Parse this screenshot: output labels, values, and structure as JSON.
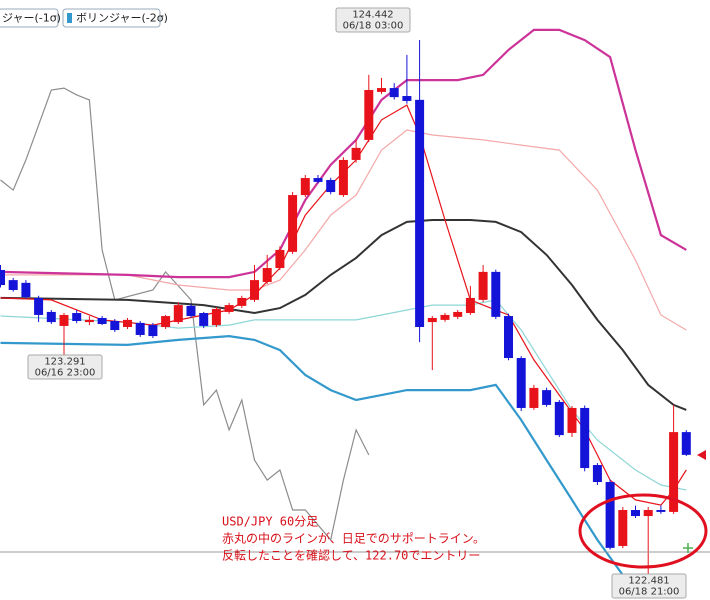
{
  "chart_data": {
    "type": "candlestick",
    "ylim": [
      122.401,
      124.588
    ],
    "up_color": "#e8131a",
    "down_color": "#1414d8",
    "categories": [
      null,
      null,
      null,
      null,
      null,
      null,
      null,
      null,
      null,
      null,
      null,
      null,
      null,
      null,
      null,
      null,
      null,
      null,
      null,
      null,
      null,
      null,
      null,
      null,
      null,
      null,
      null,
      null,
      null,
      null,
      null,
      null,
      null,
      null,
      null,
      null,
      null,
      null,
      null,
      null,
      null,
      null,
      null,
      null,
      null,
      null,
      null,
      null,
      null,
      null,
      null,
      null,
      null,
      null,
      null
    ],
    "open": [
      123.604,
      123.567,
      123.557,
      123.502,
      123.451,
      123.4,
      123.447,
      123.414,
      123.429,
      123.418,
      123.396,
      123.411,
      123.403,
      123.396,
      123.414,
      123.473,
      123.447,
      123.403,
      123.451,
      123.473,
      123.495,
      123.56,
      123.611,
      123.67,
      123.877,
      123.939,
      123.932,
      123.877,
      124.005,
      124.078,
      124.253,
      124.267,
      124.238,
      124.224,
      123.414,
      123.422,
      123.433,
      123.447,
      123.495,
      123.597,
      123.436,
      123.283,
      123.101,
      123.166,
      123.123,
      123.01,
      123.101,
      122.893,
      122.831,
      122.598,
      122.729,
      122.707,
      122.729,
      122.722,
      123.013
    ],
    "high": [
      123.622,
      123.575,
      123.567,
      123.51,
      123.458,
      123.447,
      123.458,
      123.436,
      123.436,
      123.425,
      123.429,
      123.418,
      123.411,
      123.44,
      123.487,
      123.48,
      123.451,
      123.469,
      123.484,
      123.51,
      123.622,
      123.659,
      123.69,
      123.888,
      123.95,
      123.95,
      123.94,
      124.015,
      124.078,
      124.315,
      124.304,
      124.285,
      124.388,
      124.442,
      123.436,
      123.447,
      123.458,
      123.546,
      123.622,
      123.605,
      123.445,
      123.29,
      123.185,
      123.175,
      123.13,
      123.108,
      123.11,
      122.9,
      122.84,
      122.74,
      122.745,
      122.74,
      122.745,
      123.112,
      123.02
    ],
    "low": [
      123.54,
      123.525,
      123.5,
      123.414,
      123.407,
      123.291,
      123.41,
      123.403,
      123.403,
      123.378,
      123.389,
      123.36,
      123.356,
      123.389,
      123.407,
      123.429,
      123.392,
      123.396,
      123.444,
      123.465,
      123.487,
      123.553,
      123.604,
      123.662,
      123.87,
      123.92,
      123.88,
      123.87,
      123.995,
      124.07,
      124.245,
      124.225,
      124.21,
      123.341,
      123.239,
      123.415,
      123.425,
      123.44,
      123.487,
      123.425,
      123.275,
      123.09,
      123.094,
      123.105,
      122.995,
      122.995,
      122.87,
      122.82,
      122.585,
      122.59,
      122.7,
      122.481,
      122.715,
      122.715,
      122.926
    ],
    "close": [
      123.549,
      123.531,
      123.505,
      123.44,
      123.414,
      123.44,
      123.418,
      123.422,
      123.407,
      123.385,
      123.422,
      123.367,
      123.363,
      123.436,
      123.476,
      123.436,
      123.4,
      123.462,
      123.476,
      123.502,
      123.567,
      123.611,
      123.677,
      123.877,
      123.939,
      123.925,
      123.888,
      124.005,
      124.049,
      124.26,
      124.267,
      124.234,
      124.22,
      123.396,
      123.429,
      123.44,
      123.451,
      123.502,
      123.597,
      123.433,
      123.283,
      123.101,
      123.174,
      123.112,
      123.002,
      123.101,
      122.882,
      122.831,
      122.591,
      122.729,
      122.707,
      122.729,
      122.722,
      123.013,
      122.93
    ],
    "series": [
      {
        "color": "#8c8c8c",
        "x": [
          0,
          1,
          2,
          3,
          4,
          5,
          6,
          7,
          8,
          9,
          12,
          13,
          15,
          16,
          17,
          18,
          19,
          20,
          21,
          22,
          23,
          24,
          26,
          27,
          28,
          29
        ],
        "values": [
          123.932,
          123.895,
          124.005,
          124.132,
          124.26,
          124.267,
          124.242,
          124.224,
          123.677,
          123.495,
          123.531,
          123.597,
          123.495,
          123.112,
          123.166,
          123.021,
          123.13,
          122.911,
          122.838,
          122.875,
          122.729,
          122.729,
          122.62,
          122.838,
          123.021,
          122.93
        ]
      },
      {
        "color": "#f4a8a8",
        "x": [
          0,
          10,
          14,
          18,
          20,
          22,
          24,
          26,
          28,
          30,
          32,
          34,
          38,
          41,
          44,
          47,
          50,
          52,
          54
        ],
        "values": [
          123.586,
          123.586,
          123.549,
          123.531,
          123.531,
          123.567,
          123.677,
          123.804,
          123.877,
          124.041,
          124.114,
          124.096,
          124.078,
          124.059,
          124.041,
          123.895,
          123.64,
          123.44,
          123.385
        ]
      },
      {
        "color": "#cc3399",
        "x": [
          0,
          10,
          14,
          18,
          20,
          22,
          24,
          26,
          28,
          30,
          32,
          34,
          36,
          38,
          40,
          42,
          44,
          46,
          48,
          50,
          52,
          54
        ],
        "values": [
          123.597,
          123.586,
          123.578,
          123.578,
          123.597,
          123.677,
          123.859,
          123.987,
          124.078,
          124.224,
          124.296,
          124.296,
          124.296,
          124.315,
          124.406,
          124.479,
          124.479,
          124.442,
          124.38,
          124.041,
          123.731,
          123.677
        ]
      },
      {
        "name": "ジャー(-1σ)",
        "color": "#8fd6d6",
        "x": [
          0,
          10,
          14,
          18,
          20,
          22,
          24,
          26,
          28,
          30,
          32,
          34,
          37,
          39,
          41,
          43,
          45,
          47,
          50,
          52,
          54
        ],
        "values": [
          123.436,
          123.414,
          123.392,
          123.403,
          123.422,
          123.422,
          123.422,
          123.422,
          123.422,
          123.44,
          123.458,
          123.476,
          123.476,
          123.495,
          123.385,
          123.239,
          123.094,
          122.984,
          122.875,
          122.82,
          122.802
        ]
      },
      {
        "name": "ボリンジャー(-2σ)",
        "color": "#3399cc",
        "x": [
          0,
          10,
          14,
          18,
          20,
          22,
          24,
          26,
          28,
          30,
          32,
          34,
          37,
          39,
          41,
          43,
          45,
          47,
          49,
          51,
          54
        ],
        "values": [
          123.338,
          123.331,
          123.349,
          123.363,
          123.349,
          123.312,
          123.221,
          123.166,
          123.13,
          123.148,
          123.166,
          123.166,
          123.166,
          123.185,
          123.057,
          122.911,
          122.766,
          122.62,
          122.492,
          122.481,
          122.474
        ]
      },
      {
        "color": "#333333",
        "x": [
          0,
          10,
          16,
          20,
          22,
          24,
          26,
          28,
          30,
          32,
          34,
          37,
          39,
          41,
          43,
          45,
          47,
          49,
          51,
          53,
          54
        ],
        "values": [
          123.502,
          123.495,
          123.476,
          123.447,
          123.465,
          123.513,
          123.586,
          123.648,
          123.731,
          123.779,
          123.786,
          123.786,
          123.779,
          123.742,
          123.659,
          123.549,
          123.422,
          123.312,
          123.185,
          123.112,
          123.094
        ]
      },
      {
        "color": "#e8131a",
        "x": [
          0,
          4,
          8,
          12,
          16,
          18,
          20,
          22,
          24,
          26,
          28,
          30,
          32,
          33,
          35,
          37,
          38,
          40,
          42,
          44,
          46,
          48,
          50,
          52,
          53,
          54
        ],
        "values": [
          123.502,
          123.495,
          123.422,
          123.403,
          123.44,
          123.458,
          123.513,
          123.611,
          123.804,
          123.914,
          124.005,
          124.151,
          124.205,
          124.096,
          123.786,
          123.495,
          123.476,
          123.44,
          123.276,
          123.148,
          123.021,
          122.838,
          122.766,
          122.747,
          122.802,
          122.875
        ]
      }
    ],
    "annotations": [
      {
        "price": "124.442",
        "time": "06/18 03:00"
      },
      {
        "price": "123.291",
        "time": "06/16 23:00"
      },
      {
        "price": "122.481",
        "time": "06/18 21:00"
      }
    ],
    "note": [
      "USD/JPY 60分足",
      "赤丸の中のラインが、日足でのサポートライン。",
      "反転したことを確認して、122.70でエントリー"
    ]
  }
}
